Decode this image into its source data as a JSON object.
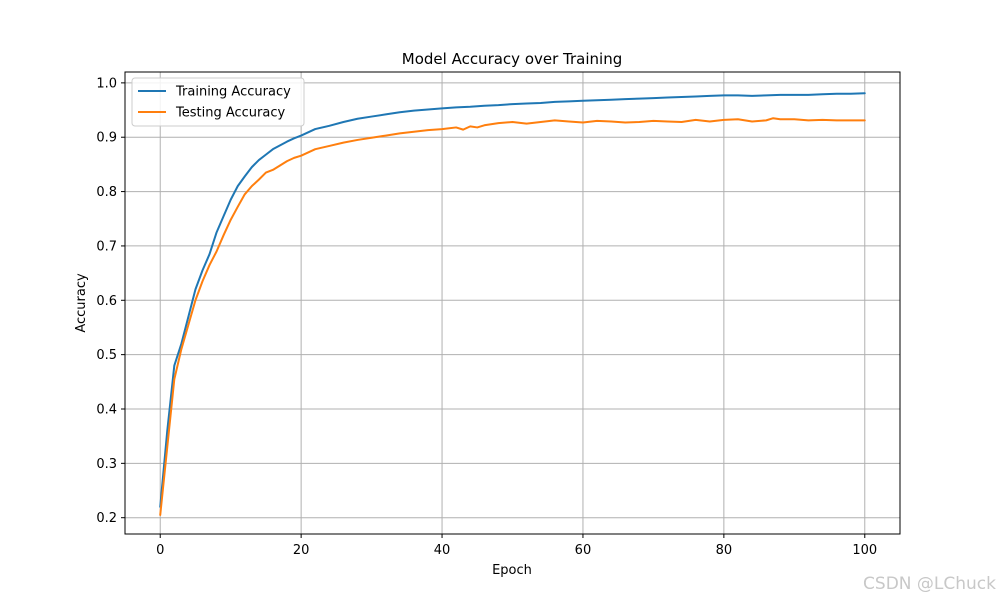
{
  "chart_data": {
    "type": "line",
    "title": "Model Accuracy over Training",
    "xlabel": "Epoch",
    "ylabel": "Accuracy",
    "xlim": [
      -5,
      105
    ],
    "ylim": [
      0.17,
      1.02
    ],
    "xticks": [
      0,
      20,
      40,
      60,
      80,
      100
    ],
    "yticks": [
      0.2,
      0.3,
      0.4,
      0.5,
      0.6,
      0.7,
      0.8,
      0.9,
      1.0
    ],
    "grid": true,
    "legend_position": "top-left",
    "series": [
      {
        "name": "Training Accuracy",
        "color": "#1f77b4",
        "x": [
          0,
          1,
          2,
          3,
          4,
          5,
          6,
          7,
          8,
          9,
          10,
          11,
          12,
          13,
          14,
          15,
          16,
          17,
          18,
          19,
          20,
          22,
          24,
          26,
          28,
          30,
          32,
          34,
          36,
          38,
          40,
          42,
          44,
          46,
          48,
          50,
          52,
          54,
          56,
          58,
          60,
          62,
          64,
          66,
          68,
          70,
          72,
          74,
          76,
          78,
          80,
          82,
          84,
          86,
          88,
          90,
          92,
          94,
          96,
          98,
          100
        ],
        "y": [
          0.22,
          0.36,
          0.48,
          0.52,
          0.57,
          0.62,
          0.655,
          0.685,
          0.725,
          0.755,
          0.785,
          0.81,
          0.828,
          0.845,
          0.858,
          0.868,
          0.878,
          0.885,
          0.892,
          0.898,
          0.903,
          0.915,
          0.921,
          0.928,
          0.934,
          0.938,
          0.942,
          0.946,
          0.949,
          0.951,
          0.953,
          0.955,
          0.956,
          0.958,
          0.959,
          0.961,
          0.962,
          0.963,
          0.965,
          0.966,
          0.967,
          0.968,
          0.969,
          0.97,
          0.971,
          0.972,
          0.973,
          0.974,
          0.975,
          0.976,
          0.977,
          0.977,
          0.976,
          0.977,
          0.978,
          0.978,
          0.978,
          0.979,
          0.98,
          0.98,
          0.981
        ]
      },
      {
        "name": "Testing Accuracy",
        "color": "#ff7f0e",
        "x": [
          0,
          1,
          2,
          3,
          4,
          5,
          6,
          7,
          8,
          9,
          10,
          11,
          12,
          13,
          14,
          15,
          16,
          17,
          18,
          19,
          20,
          22,
          24,
          26,
          28,
          30,
          32,
          34,
          36,
          38,
          40,
          42,
          43,
          44,
          45,
          46,
          48,
          50,
          52,
          54,
          56,
          58,
          60,
          62,
          64,
          66,
          68,
          70,
          72,
          74,
          76,
          78,
          80,
          82,
          84,
          86,
          87,
          88,
          90,
          92,
          94,
          96,
          98,
          100
        ],
        "y": [
          0.205,
          0.33,
          0.455,
          0.51,
          0.555,
          0.6,
          0.635,
          0.665,
          0.69,
          0.72,
          0.748,
          0.772,
          0.795,
          0.81,
          0.822,
          0.835,
          0.84,
          0.848,
          0.856,
          0.862,
          0.866,
          0.878,
          0.884,
          0.89,
          0.895,
          0.899,
          0.903,
          0.907,
          0.91,
          0.913,
          0.915,
          0.918,
          0.914,
          0.92,
          0.918,
          0.922,
          0.926,
          0.928,
          0.925,
          0.928,
          0.931,
          0.929,
          0.927,
          0.93,
          0.929,
          0.927,
          0.928,
          0.93,
          0.929,
          0.928,
          0.932,
          0.929,
          0.932,
          0.933,
          0.929,
          0.931,
          0.935,
          0.933,
          0.933,
          0.931,
          0.932,
          0.931,
          0.931,
          0.931
        ]
      }
    ]
  },
  "watermark": "CSDN @LChuck"
}
